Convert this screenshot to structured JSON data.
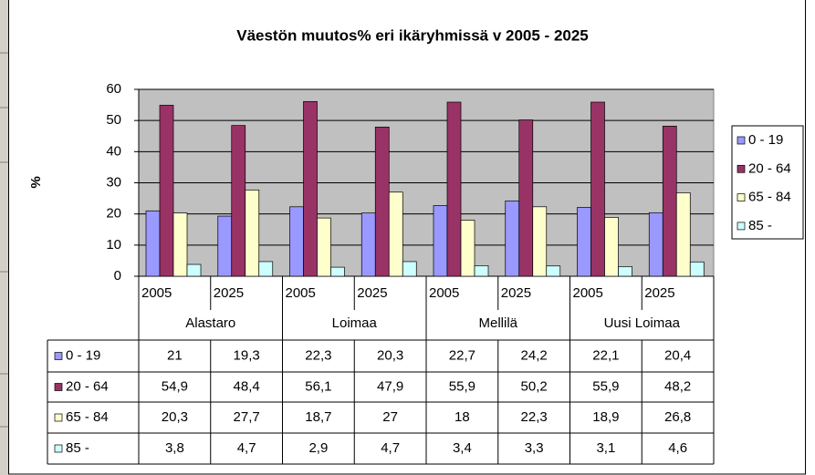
{
  "chart_data": {
    "type": "bar",
    "title": "Väestön muutos% eri ikäryhmissä v 2005 - 2025",
    "y_label": "%",
    "categories": [
      "2005",
      "2025",
      "2005",
      "2025",
      "2005",
      "2025",
      "2005",
      "2025"
    ],
    "groups": [
      "Alastaro",
      "Loimaa",
      "Mellilä",
      "Uusi Loimaa"
    ],
    "series": [
      {
        "name": "0 - 19",
        "color": "#9999ff",
        "values": [
          21,
          19.3,
          22.3,
          20.3,
          22.7,
          24.2,
          22.1,
          20.4
        ],
        "value_labels": [
          "21",
          "19,3",
          "22,3",
          "20,3",
          "22,7",
          "24,2",
          "22,1",
          "20,4"
        ]
      },
      {
        "name": "20 - 64",
        "color": "#993366",
        "values": [
          54.9,
          48.4,
          56.1,
          47.9,
          55.9,
          50.2,
          55.9,
          48.2
        ],
        "value_labels": [
          "54,9",
          "48,4",
          "56,1",
          "47,9",
          "55,9",
          "50,2",
          "55,9",
          "48,2"
        ]
      },
      {
        "name": "65 - 84",
        "color": "#ffffcc",
        "values": [
          20.3,
          27.7,
          18.7,
          27,
          18,
          22.3,
          18.9,
          26.8
        ],
        "value_labels": [
          "20,3",
          "27,7",
          "18,7",
          "27",
          "18",
          "22,3",
          "18,9",
          "26,8"
        ]
      },
      {
        "name": "85 -",
        "color": "#ccffff",
        "values": [
          3.8,
          4.7,
          2.9,
          4.7,
          3.4,
          3.3,
          3.1,
          4.6
        ],
        "value_labels": [
          "3,8",
          "4,7",
          "2,9",
          "4,7",
          "3,4",
          "3,3",
          "3,1",
          "4,6"
        ]
      }
    ],
    "ylim": [
      0,
      60
    ],
    "yticks": [
      0,
      10,
      20,
      30,
      40,
      50,
      60
    ],
    "grid": true,
    "legend": "right",
    "plot_color": "#c0c0c0"
  }
}
